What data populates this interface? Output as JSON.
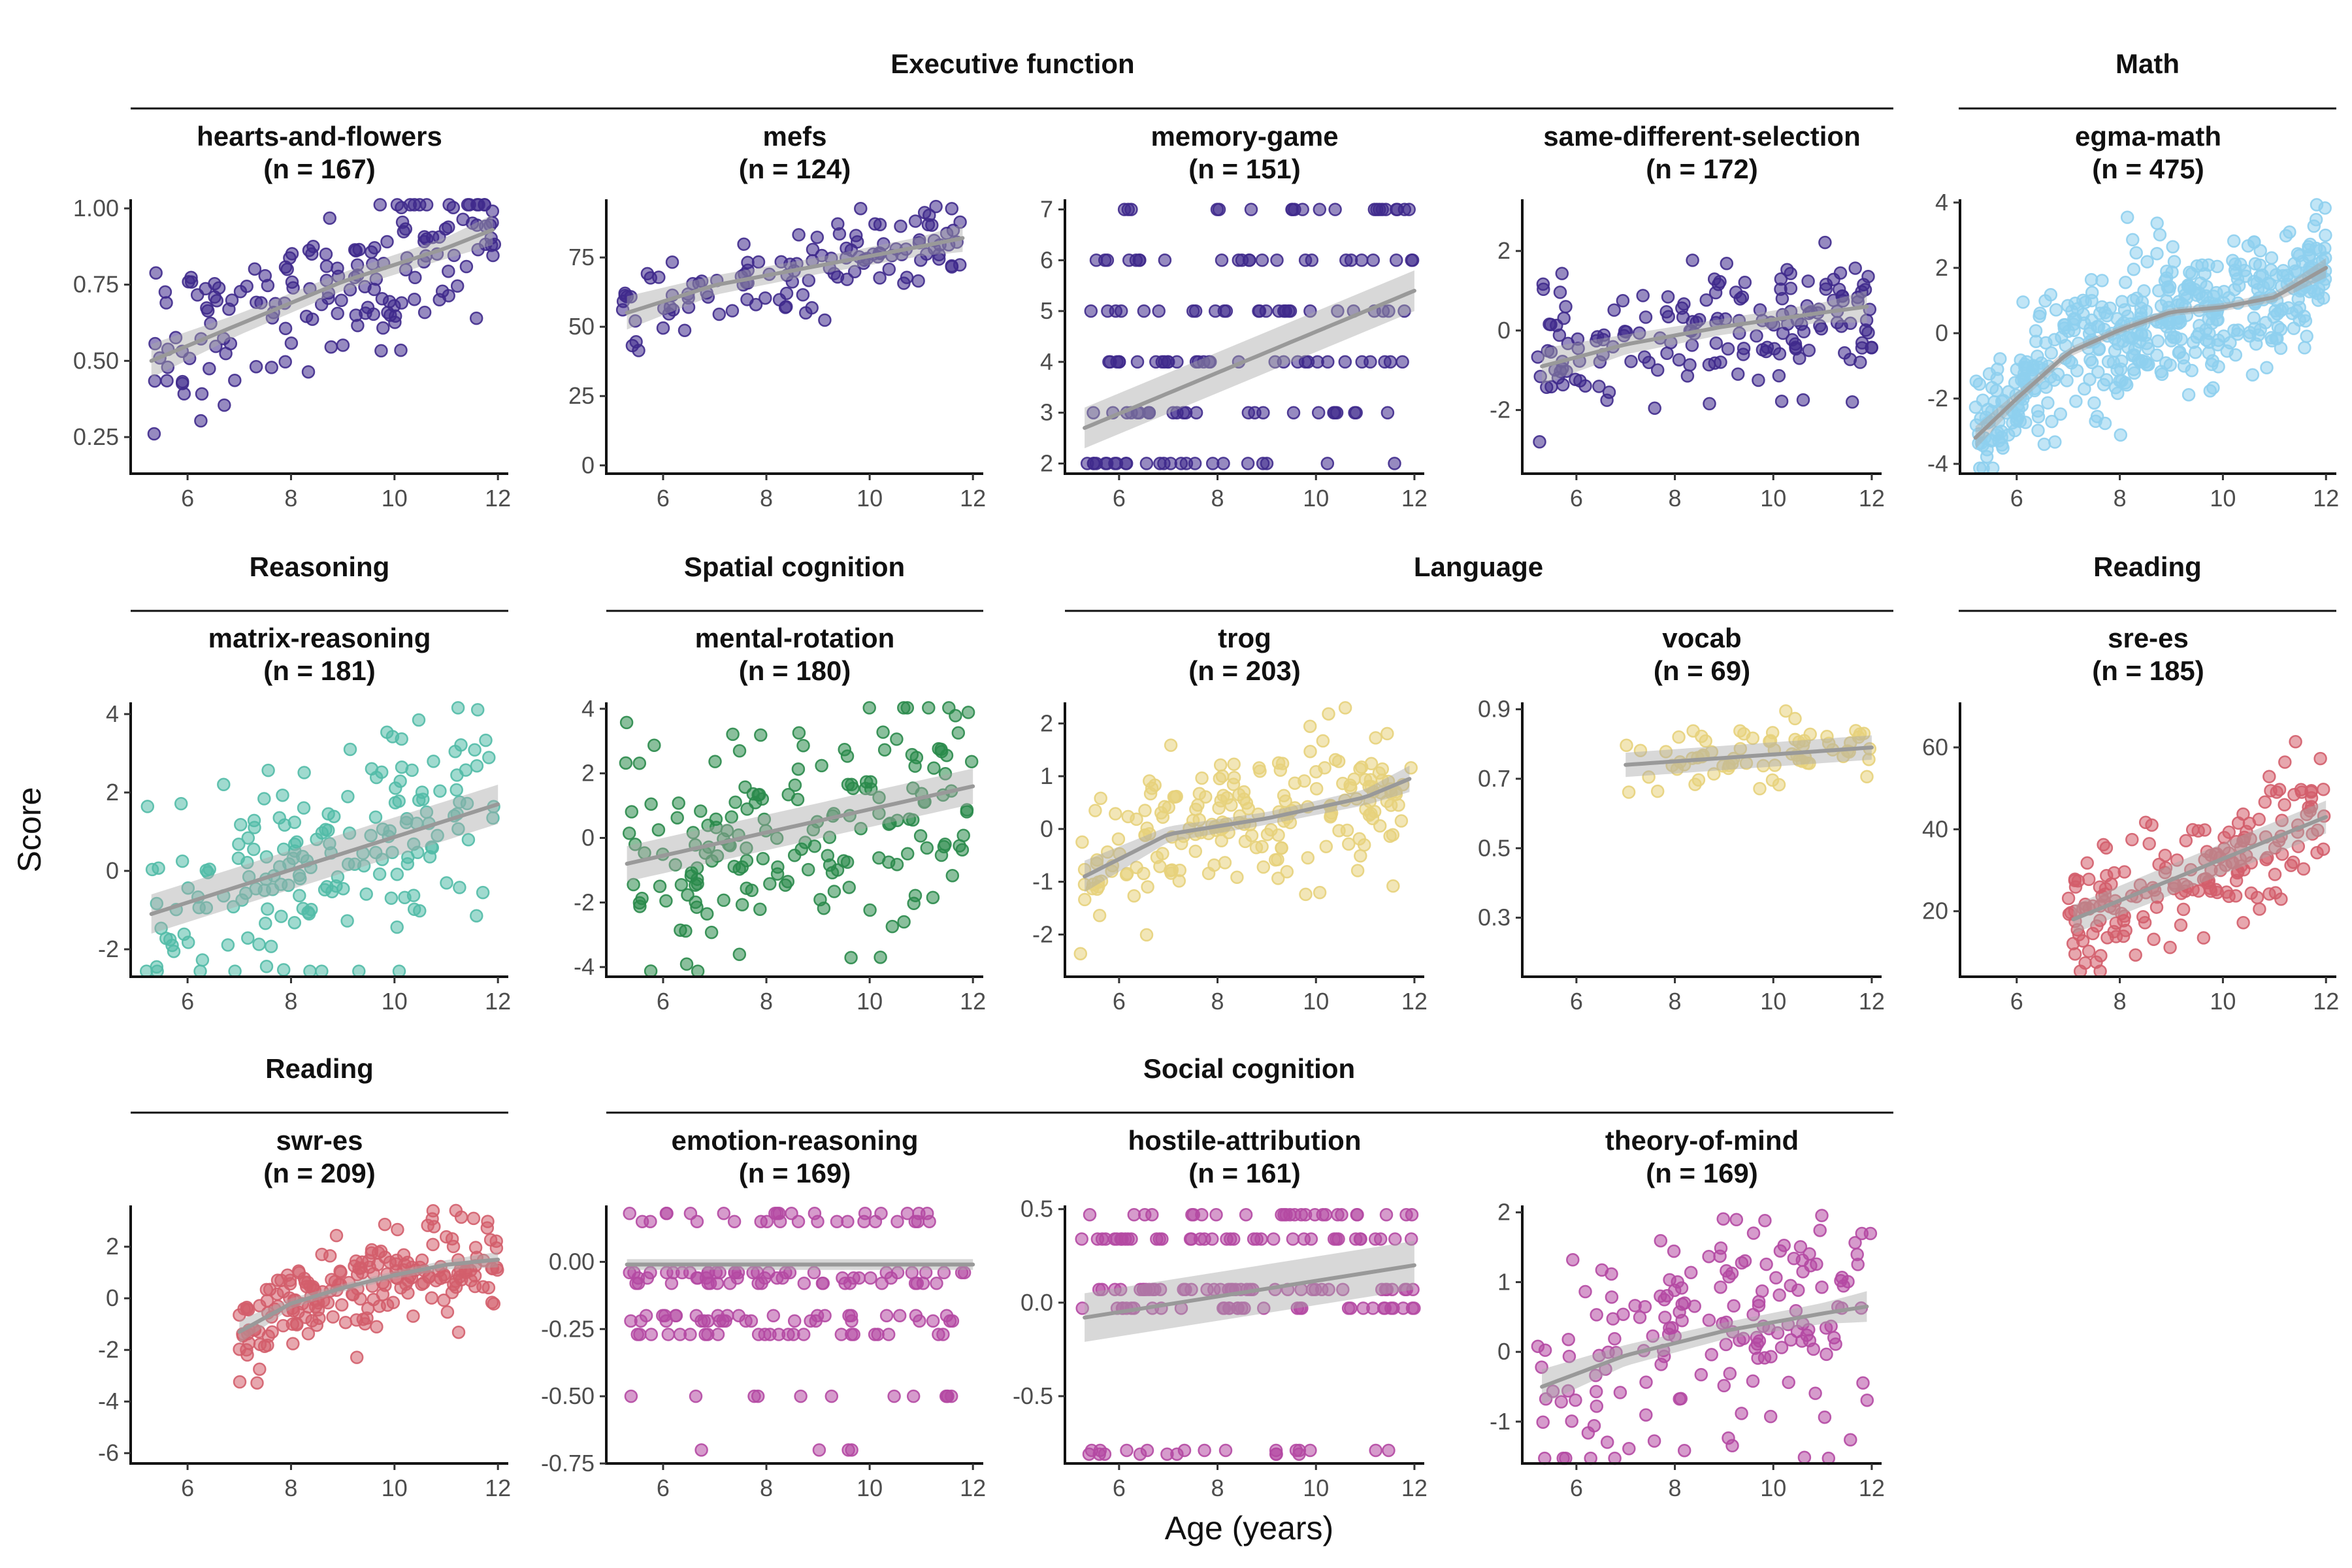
{
  "chart_data": {
    "type": "scatter",
    "xlabel": "Age (years)",
    "ylabel": "Score",
    "xlim": [
      4.9,
      12.2
    ],
    "x_ticks": [
      6,
      8,
      10,
      12
    ],
    "groups": [
      {
        "label": "Executive function"
      },
      {
        "label": "Math"
      },
      {
        "label": "Reasoning"
      },
      {
        "label": "Spatial cognition"
      },
      {
        "label": "Language"
      },
      {
        "label": "Reading"
      },
      {
        "label": "Reading"
      },
      {
        "label": "Social cognition"
      }
    ],
    "panels": [
      {
        "task": "hearts-and-flowers",
        "n_label": "(n = 167)",
        "domain": "Executive function",
        "color": "#3f2a8c",
        "n": 167,
        "ylim": [
          0.13,
          1.03
        ],
        "y_ticks": [
          0.25,
          0.5,
          0.75,
          1.0
        ],
        "y_tick_labels": [
          "0.25",
          "0.50",
          "0.75",
          "1.00"
        ],
        "x_range": [
          5.2,
          12
        ],
        "y_mode": "continuous",
        "jitter": 0.14,
        "trend_x": [
          5.3,
          7,
          9,
          11,
          11.9
        ],
        "trend_y": [
          0.5,
          0.62,
          0.76,
          0.87,
          0.93
        ],
        "ci": [
          0.055,
          0.035,
          0.03,
          0.035,
          0.05
        ]
      },
      {
        "task": "mefs",
        "n_label": "(n = 124)",
        "domain": "Executive function",
        "color": "#3f2a8c",
        "n": 124,
        "ylim": [
          -3,
          96
        ],
        "y_ticks": [
          0,
          25,
          50,
          75
        ],
        "y_tick_labels": [
          "0",
          "25",
          "50",
          "75"
        ],
        "x_range": [
          5.2,
          11.8
        ],
        "y_mode": "continuous",
        "jitter": 8,
        "trend_x": [
          5.3,
          7,
          9,
          11,
          11.8
        ],
        "trend_y": [
          55,
          65,
          72,
          79,
          82
        ],
        "ci": [
          6,
          3.5,
          3,
          3.5,
          5
        ]
      },
      {
        "task": "memory-game",
        "n_label": "(n = 151)",
        "domain": "Executive function",
        "color": "#3f2a8c",
        "n": 151,
        "ylim": [
          1.8,
          7.2
        ],
        "y_ticks": [
          2,
          3,
          4,
          5,
          6,
          7
        ],
        "y_tick_labels": [
          "2",
          "3",
          "4",
          "5",
          "6",
          "7"
        ],
        "x_range": [
          5.2,
          12
        ],
        "y_mode": "discrete",
        "y_levels": [
          2,
          3,
          4,
          5,
          6,
          7
        ],
        "trend_x": [
          5.3,
          12
        ],
        "trend_y": [
          2.7,
          5.4
        ],
        "ci": [
          0.4,
          0.4
        ]
      },
      {
        "task": "same-different-selection",
        "n_label": "(n = 172)",
        "domain": "Executive function",
        "color": "#3f2a8c",
        "n": 172,
        "ylim": [
          -3.6,
          3.3
        ],
        "y_ticks": [
          -2,
          0,
          2
        ],
        "y_tick_labels": [
          "-2",
          "0",
          "2"
        ],
        "x_range": [
          5.2,
          12
        ],
        "y_mode": "continuous",
        "jitter": 0.9,
        "trend_x": [
          5.3,
          7,
          9,
          11,
          11.9
        ],
        "trend_y": [
          -0.9,
          -0.35,
          0.1,
          0.45,
          0.6
        ],
        "ci": [
          0.45,
          0.25,
          0.2,
          0.25,
          0.4
        ]
      },
      {
        "task": "egma-math",
        "n_label": "(n = 475)",
        "domain": "Math",
        "color": "#8ecfee",
        "n": 475,
        "ylim": [
          -4.3,
          4.1
        ],
        "y_ticks": [
          -4,
          -2,
          0,
          2,
          4
        ],
        "y_tick_labels": [
          "-4",
          "-2",
          "0",
          "2",
          "4"
        ],
        "x_range": [
          5.2,
          12
        ],
        "y_mode": "continuous",
        "jitter": 1.0,
        "trend_x": [
          5.2,
          6,
          7,
          8,
          9,
          10,
          11,
          12
        ],
        "trend_y": [
          -3.2,
          -2.0,
          -0.6,
          0.1,
          0.65,
          0.8,
          1.1,
          2.0
        ],
        "ci": [
          0.35,
          0.2,
          0.15,
          0.12,
          0.12,
          0.12,
          0.15,
          0.3
        ]
      },
      {
        "task": "matrix-reasoning",
        "n_label": "(n = 181)",
        "domain": "Reasoning",
        "color": "#52bba7",
        "n": 181,
        "ylim": [
          -2.7,
          4.3
        ],
        "y_ticks": [
          -2,
          0,
          2,
          4
        ],
        "y_tick_labels": [
          "-2",
          "0",
          "2",
          "4"
        ],
        "x_range": [
          5.2,
          12
        ],
        "y_mode": "continuous",
        "jitter": 1.3,
        "trend_x": [
          5.3,
          12
        ],
        "trend_y": [
          -1.1,
          1.7
        ],
        "ci": [
          0.5,
          0.5
        ]
      },
      {
        "task": "mental-rotation",
        "n_label": "(n = 180)",
        "domain": "Spatial cognition",
        "color": "#2a8a4b",
        "n": 180,
        "ylim": [
          -4.3,
          4.2
        ],
        "y_ticks": [
          -4,
          -2,
          0,
          2,
          4
        ],
        "y_tick_labels": [
          "-4",
          "-2",
          "0",
          "2",
          "4"
        ],
        "x_range": [
          5.2,
          12
        ],
        "y_mode": "continuous",
        "jitter": 1.6,
        "trend_x": [
          5.3,
          12
        ],
        "trend_y": [
          -0.8,
          1.6
        ],
        "ci": [
          0.55,
          0.55
        ]
      },
      {
        "task": "trog",
        "n_label": "(n = 203)",
        "domain": "Language",
        "color": "#e7d17b",
        "n": 203,
        "ylim": [
          -2.8,
          2.4
        ],
        "y_ticks": [
          -2,
          -1,
          0,
          1,
          2
        ],
        "y_tick_labels": [
          "-2",
          "-1",
          "0",
          "1",
          "2"
        ],
        "x_range": [
          5.2,
          12
        ],
        "y_mode": "continuous",
        "jitter": 0.7,
        "trend_x": [
          5.3,
          7,
          9,
          11,
          11.9
        ],
        "trend_y": [
          -0.9,
          -0.1,
          0.2,
          0.6,
          0.95
        ],
        "ci": [
          0.3,
          0.15,
          0.12,
          0.15,
          0.25
        ]
      },
      {
        "task": "vocab",
        "n_label": "(n = 69)",
        "domain": "Language",
        "color": "#e7d17b",
        "n": 69,
        "ylim": [
          0.13,
          0.92
        ],
        "y_ticks": [
          0.3,
          0.5,
          0.7,
          0.9
        ],
        "y_tick_labels": [
          "0.3",
          "0.5",
          "0.7",
          "0.9"
        ],
        "x_range": [
          7,
          12
        ],
        "y_mode": "continuous",
        "jitter": 0.045,
        "trend_x": [
          7,
          12
        ],
        "trend_y": [
          0.74,
          0.79
        ],
        "ci": [
          0.035,
          0.035
        ]
      },
      {
        "task": "sre-es",
        "n_label": "(n = 185)",
        "domain": "Reading",
        "color": "#d35e6c",
        "n": 185,
        "ylim": [
          4,
          71
        ],
        "y_ticks": [
          20,
          40,
          60
        ],
        "y_tick_labels": [
          "20",
          "40",
          "60"
        ],
        "x_range": [
          7,
          12
        ],
        "y_mode": "continuous",
        "jitter": 7,
        "trend_x": [
          7.1,
          12
        ],
        "trend_y": [
          18,
          43
        ],
        "ci": [
          3.5,
          4
        ]
      },
      {
        "task": "swr-es",
        "n_label": "(n = 209)",
        "domain": "Reading",
        "color": "#d35e6c",
        "n": 209,
        "ylim": [
          -6.4,
          3.6
        ],
        "y_ticks": [
          -6,
          -4,
          -2,
          0,
          2
        ],
        "y_tick_labels": [
          "-6",
          "-4",
          "-2",
          "0",
          "2"
        ],
        "x_range": [
          7,
          12
        ],
        "y_mode": "continuous",
        "jitter": 0.9,
        "trend_x": [
          7,
          8,
          9,
          10,
          11,
          12
        ],
        "trend_y": [
          -1.3,
          -0.2,
          0.4,
          0.9,
          1.3,
          1.5
        ],
        "ci": [
          0.45,
          0.2,
          0.15,
          0.15,
          0.18,
          0.3
        ]
      },
      {
        "task": "emotion-reasoning",
        "n_label": "(n = 169)",
        "domain": "Social cognition",
        "color": "#b449a3",
        "n": 169,
        "ylim": [
          -0.75,
          0.21
        ],
        "y_ticks": [
          -0.75,
          -0.5,
          -0.25,
          0.0
        ],
        "y_tick_labels": [
          "-0.75",
          "-0.50",
          "-0.25",
          "0.00"
        ],
        "x_range": [
          5.2,
          12
        ],
        "y_mode": "discrete",
        "y_levels": [
          0.18,
          0.15,
          -0.04,
          -0.06,
          -0.08,
          -0.2,
          -0.22,
          -0.27,
          -0.5,
          -0.7
        ],
        "trend_x": [
          5.3,
          12
        ],
        "trend_y": [
          -0.01,
          -0.01
        ],
        "ci": [
          0.02,
          0.02
        ]
      },
      {
        "task": "hostile-attribution",
        "n_label": "(n = 161)",
        "domain": "Social cognition",
        "color": "#b449a3",
        "n": 161,
        "ylim": [
          -0.86,
          0.52
        ],
        "y_ticks": [
          -0.5,
          0.0,
          0.5
        ],
        "y_tick_labels": [
          "-0.5",
          "0.0",
          "0.5"
        ],
        "x_range": [
          5.2,
          12
        ],
        "y_mode": "discrete",
        "y_levels": [
          0.47,
          0.34,
          0.07,
          -0.03,
          -0.79,
          -0.81
        ],
        "trend_x": [
          5.3,
          12
        ],
        "trend_y": [
          -0.08,
          0.2
        ],
        "ci": [
          0.13,
          0.13
        ]
      },
      {
        "task": "theory-of-mind",
        "n_label": "(n = 169)",
        "domain": "Social cognition",
        "color": "#b449a3",
        "n": 169,
        "ylim": [
          -1.6,
          2.1
        ],
        "y_ticks": [
          -1,
          0,
          1,
          2
        ],
        "y_tick_labels": [
          "-1",
          "0",
          "1",
          "2"
        ],
        "x_range": [
          5.2,
          12
        ],
        "y_mode": "continuous",
        "jitter": 0.85,
        "trend_x": [
          5.3,
          7,
          9,
          11,
          11.9
        ],
        "trend_y": [
          -0.5,
          -0.05,
          0.3,
          0.55,
          0.65
        ],
        "ci": [
          0.25,
          0.15,
          0.12,
          0.15,
          0.22
        ]
      }
    ]
  }
}
